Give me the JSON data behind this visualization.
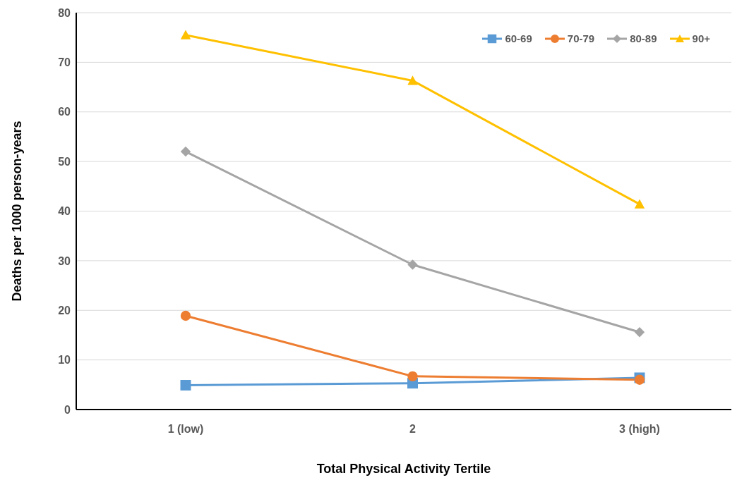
{
  "chart_data": {
    "type": "line",
    "xlabel": "Total Physical Activity Tertile",
    "ylabel": "Deaths per 1000 person-years",
    "categories": [
      "1 (low)",
      "2",
      "3 (high)"
    ],
    "series": [
      {
        "name": "60-69",
        "color": "#5b9bd5",
        "marker": "square",
        "values": [
          4.9,
          5.3,
          6.4
        ]
      },
      {
        "name": "70-79",
        "color": "#ed7d31",
        "marker": "circle",
        "values": [
          18.9,
          6.7,
          6.0
        ]
      },
      {
        "name": "80-89",
        "color": "#a5a5a5",
        "marker": "diamond",
        "values": [
          52.0,
          29.2,
          15.6
        ]
      },
      {
        "name": "90+",
        "color": "#ffc000",
        "marker": "triangle",
        "values": [
          75.5,
          66.3,
          41.4
        ]
      }
    ],
    "ylim": [
      0,
      80
    ],
    "yticks": [
      0,
      10,
      20,
      30,
      40,
      50,
      60,
      70,
      80
    ],
    "grid": "y",
    "legend": "top right"
  }
}
